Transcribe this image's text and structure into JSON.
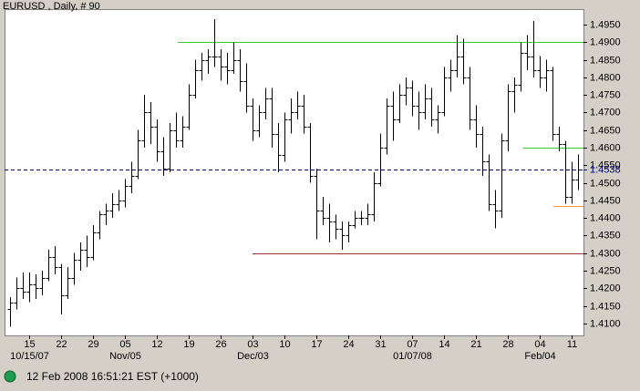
{
  "chart_data": {
    "type": "ohlc",
    "title": "EURUSD , Daily, # 90",
    "categories": [
      null,
      null,
      null,
      "15",
      null,
      null,
      null,
      null,
      "22",
      null,
      null,
      null,
      null,
      "29",
      null,
      null,
      null,
      null,
      "05",
      null,
      null,
      null,
      null,
      "12",
      null,
      null,
      null,
      null,
      "19",
      null,
      null,
      null,
      null,
      "26",
      null,
      null,
      null,
      null,
      "03",
      null,
      null,
      null,
      null,
      "10",
      null,
      null,
      null,
      null,
      "17",
      null,
      null,
      null,
      null,
      "24",
      null,
      null,
      null,
      null,
      "31",
      null,
      null,
      null,
      null,
      "07",
      null,
      null,
      null,
      null,
      "14",
      null,
      null,
      null,
      null,
      "21",
      null,
      null,
      null,
      null,
      "28",
      null,
      null,
      null,
      null,
      "04",
      null,
      null,
      null,
      null,
      "11",
      null
    ],
    "major_labels": [
      null,
      null,
      null,
      "10/15/07",
      null,
      null,
      null,
      null,
      null,
      null,
      null,
      null,
      null,
      null,
      null,
      null,
      null,
      null,
      "Nov/05",
      null,
      null,
      null,
      null,
      null,
      null,
      null,
      null,
      null,
      null,
      null,
      null,
      null,
      null,
      null,
      null,
      null,
      null,
      null,
      "Dec/03",
      null,
      null,
      null,
      null,
      null,
      null,
      null,
      null,
      null,
      null,
      null,
      null,
      null,
      null,
      null,
      null,
      null,
      null,
      null,
      null,
      null,
      null,
      null,
      null,
      "01/07/08",
      null,
      null,
      null,
      null,
      null,
      null,
      null,
      null,
      null,
      null,
      null,
      null,
      null,
      null,
      null,
      null,
      null,
      null,
      null,
      "Feb/04",
      null,
      null,
      null,
      null,
      null,
      null
    ],
    "open": [
      1.414,
      1.416,
      1.42,
      1.419,
      1.421,
      1.42,
      1.423,
      1.429,
      1.426,
      1.418,
      1.423,
      1.428,
      1.431,
      1.429,
      1.436,
      1.441,
      1.442,
      1.444,
      1.445,
      1.449,
      1.452,
      1.462,
      1.47,
      1.466,
      1.459,
      1.454,
      1.465,
      1.462,
      1.466,
      1.475,
      1.482,
      1.485,
      1.486,
      1.486,
      1.483,
      1.482,
      1.485,
      1.479,
      1.472,
      1.465,
      1.47,
      1.474,
      1.464,
      1.458,
      1.468,
      1.47,
      1.472,
      1.466,
      1.452,
      1.442,
      1.44,
      1.439,
      1.437,
      1.435,
      1.438,
      1.44,
      1.44,
      1.441,
      1.45,
      1.46,
      1.472,
      1.468,
      1.475,
      1.477,
      1.472,
      1.47,
      1.474,
      1.468,
      1.47,
      1.48,
      1.482,
      1.486,
      1.48,
      1.468,
      1.464,
      1.456,
      1.444,
      1.442,
      1.462,
      1.476,
      1.478,
      1.487,
      1.486,
      1.482,
      1.48,
      1.482,
      1.464,
      1.461,
      1.446,
      1.451
    ],
    "high": [
      1.4175,
      1.423,
      1.4245,
      1.4245,
      1.424,
      1.425,
      1.431,
      1.432,
      1.427,
      1.426,
      1.43,
      1.433,
      1.435,
      1.438,
      1.442,
      1.444,
      1.447,
      1.448,
      1.451,
      1.456,
      1.465,
      1.475,
      1.473,
      1.468,
      1.463,
      1.467,
      1.47,
      1.469,
      1.478,
      1.485,
      1.487,
      1.488,
      1.4965,
      1.488,
      1.487,
      1.49,
      1.488,
      1.484,
      1.474,
      1.472,
      1.477,
      1.477,
      1.467,
      1.47,
      1.474,
      1.476,
      1.475,
      1.467,
      1.454,
      1.446,
      1.444,
      1.441,
      1.439,
      1.439,
      1.442,
      1.442,
      1.444,
      1.453,
      1.464,
      1.474,
      1.476,
      1.478,
      1.48,
      1.479,
      1.476,
      1.478,
      1.477,
      1.472,
      1.483,
      1.485,
      1.492,
      1.491,
      1.483,
      1.472,
      1.466,
      1.458,
      1.448,
      1.464,
      1.478,
      1.48,
      1.49,
      1.492,
      1.496,
      1.486,
      1.485,
      1.483,
      1.466,
      1.462,
      1.456,
      1.458
    ],
    "low": [
      1.409,
      1.414,
      1.417,
      1.416,
      1.417,
      1.418,
      1.422,
      1.424,
      1.4125,
      1.417,
      1.421,
      1.425,
      1.426,
      1.428,
      1.434,
      1.438,
      1.44,
      1.442,
      1.443,
      1.447,
      1.451,
      1.46,
      1.461,
      1.456,
      1.452,
      1.453,
      1.46,
      1.46,
      1.465,
      1.474,
      1.479,
      1.481,
      1.483,
      1.479,
      1.478,
      1.481,
      1.476,
      1.47,
      1.462,
      1.463,
      1.468,
      1.46,
      1.453,
      1.456,
      1.464,
      1.468,
      1.464,
      1.45,
      1.434,
      1.438,
      1.433,
      1.434,
      1.431,
      1.433,
      1.437,
      1.438,
      1.438,
      1.439,
      1.449,
      1.458,
      1.462,
      1.467,
      1.472,
      1.469,
      1.465,
      1.468,
      1.466,
      1.464,
      1.469,
      1.476,
      1.48,
      1.478,
      1.465,
      1.46,
      1.452,
      1.442,
      1.437,
      1.44,
      1.459,
      1.47,
      1.476,
      1.482,
      1.48,
      1.477,
      1.476,
      1.462,
      1.459,
      1.444,
      1.444,
      1.448
    ],
    "close": [
      1.416,
      1.42,
      1.419,
      1.421,
      1.42,
      1.423,
      1.429,
      1.426,
      1.418,
      1.423,
      1.428,
      1.431,
      1.429,
      1.436,
      1.441,
      1.442,
      1.444,
      1.445,
      1.449,
      1.452,
      1.462,
      1.47,
      1.466,
      1.459,
      1.454,
      1.465,
      1.462,
      1.466,
      1.475,
      1.482,
      1.485,
      1.486,
      1.486,
      1.483,
      1.482,
      1.485,
      1.479,
      1.472,
      1.465,
      1.47,
      1.474,
      1.464,
      1.458,
      1.468,
      1.47,
      1.472,
      1.466,
      1.452,
      1.442,
      1.44,
      1.439,
      1.437,
      1.435,
      1.438,
      1.44,
      1.44,
      1.441,
      1.45,
      1.46,
      1.472,
      1.468,
      1.475,
      1.477,
      1.472,
      1.47,
      1.474,
      1.468,
      1.47,
      1.48,
      1.482,
      1.486,
      1.48,
      1.468,
      1.464,
      1.456,
      1.444,
      1.442,
      1.462,
      1.476,
      1.478,
      1.487,
      1.486,
      1.482,
      1.48,
      1.482,
      1.464,
      1.461,
      1.446,
      1.451,
      1.4538
    ],
    "color": "#000000",
    "ylim": [
      1.4066,
      1.4994
    ],
    "yticks": [
      {
        "value": 1.41,
        "label": "1.4100"
      },
      {
        "value": 1.415,
        "label": "1.4150"
      },
      {
        "value": 1.42,
        "label": "1.4200"
      },
      {
        "value": 1.425,
        "label": "1.4250"
      },
      {
        "value": 1.43,
        "label": "1.4300"
      },
      {
        "value": 1.435,
        "label": "1.4350"
      },
      {
        "value": 1.44,
        "label": "1.4400"
      },
      {
        "value": 1.445,
        "label": "1.4450"
      },
      {
        "value": 1.45,
        "label": "1.4500"
      },
      {
        "value": 1.455,
        "label": "1.4550"
      },
      {
        "value": 1.46,
        "label": "1.4600"
      },
      {
        "value": 1.465,
        "label": "1.4650"
      },
      {
        "value": 1.47,
        "label": "1.4700"
      },
      {
        "value": 1.475,
        "label": "1.4750"
      },
      {
        "value": 1.48,
        "label": "1.4800"
      },
      {
        "value": 1.485,
        "label": "1.4850"
      },
      {
        "value": 1.49,
        "label": "1.4900"
      },
      {
        "value": 1.495,
        "label": "1.4950"
      }
    ],
    "hlines": [
      {
        "value": 1.49,
        "color": "#33cc33"
      },
      {
        "value": 1.43,
        "color": "#993333"
      },
      {
        "value": 1.46,
        "color": "#33cc33"
      },
      {
        "value": 1.4434,
        "color": "#ff9933"
      }
    ],
    "last_price": {
      "value": 1.4538,
      "label": "1.4538",
      "color": "#000080"
    }
  },
  "status": "12 Feb 2008 16:51:21  EST (+1000)"
}
